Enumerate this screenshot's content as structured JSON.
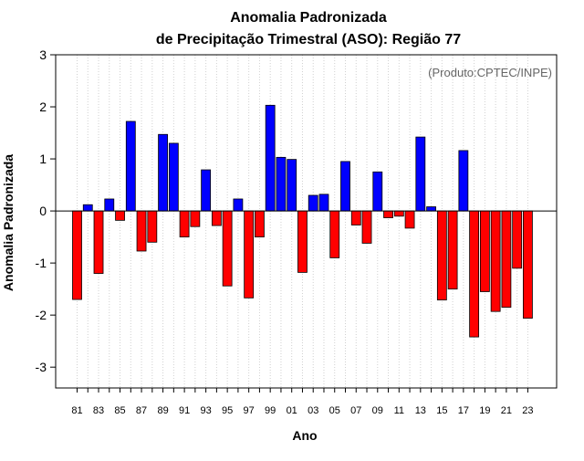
{
  "chart_data": {
    "type": "bar",
    "title_line1": "Anomalia Padronizada",
    "title_line2": "de Precipitação Trimestral (ASO): Região 77",
    "annotation": "(Produto:CPTEC/INPE)",
    "xlabel": "Ano",
    "ylabel": "Anomalia Padronizada",
    "ylim": [
      -3.4,
      3.0
    ],
    "yticks": [
      -3,
      -2,
      -1,
      0,
      1,
      2,
      3
    ],
    "x_tick_labels": [
      "81",
      "83",
      "85",
      "87",
      "89",
      "91",
      "93",
      "95",
      "97",
      "99",
      "01",
      "03",
      "05",
      "07",
      "09",
      "11",
      "13",
      "15",
      "17",
      "19",
      "21",
      "23"
    ],
    "positive_color": "#0000ff",
    "negative_color": "#ff0000",
    "grid": "vertical dotted",
    "years": [
      1981,
      1982,
      1983,
      1984,
      1985,
      1986,
      1987,
      1988,
      1989,
      1990,
      1991,
      1992,
      1993,
      1994,
      1995,
      1996,
      1997,
      1998,
      1999,
      2000,
      2001,
      2002,
      2003,
      2004,
      2005,
      2006,
      2007,
      2008,
      2009,
      2010,
      2011,
      2012,
      2013,
      2014,
      2015,
      2016,
      2017,
      2018,
      2019,
      2020,
      2021,
      2022,
      2023
    ],
    "values": [
      -1.7,
      0.12,
      -1.2,
      0.23,
      -0.18,
      1.72,
      -0.77,
      -0.6,
      1.47,
      1.3,
      -0.5,
      -0.3,
      0.79,
      -0.28,
      -1.44,
      0.23,
      -1.67,
      -0.5,
      2.03,
      1.03,
      0.99,
      -1.18,
      0.3,
      0.32,
      -0.9,
      0.95,
      -0.27,
      -0.62,
      0.75,
      -0.13,
      -0.1,
      -0.33,
      1.42,
      0.08,
      -1.71,
      -1.5,
      1.16,
      -2.42,
      -1.55,
      -1.93,
      -1.85,
      -1.1,
      -2.06
    ]
  }
}
